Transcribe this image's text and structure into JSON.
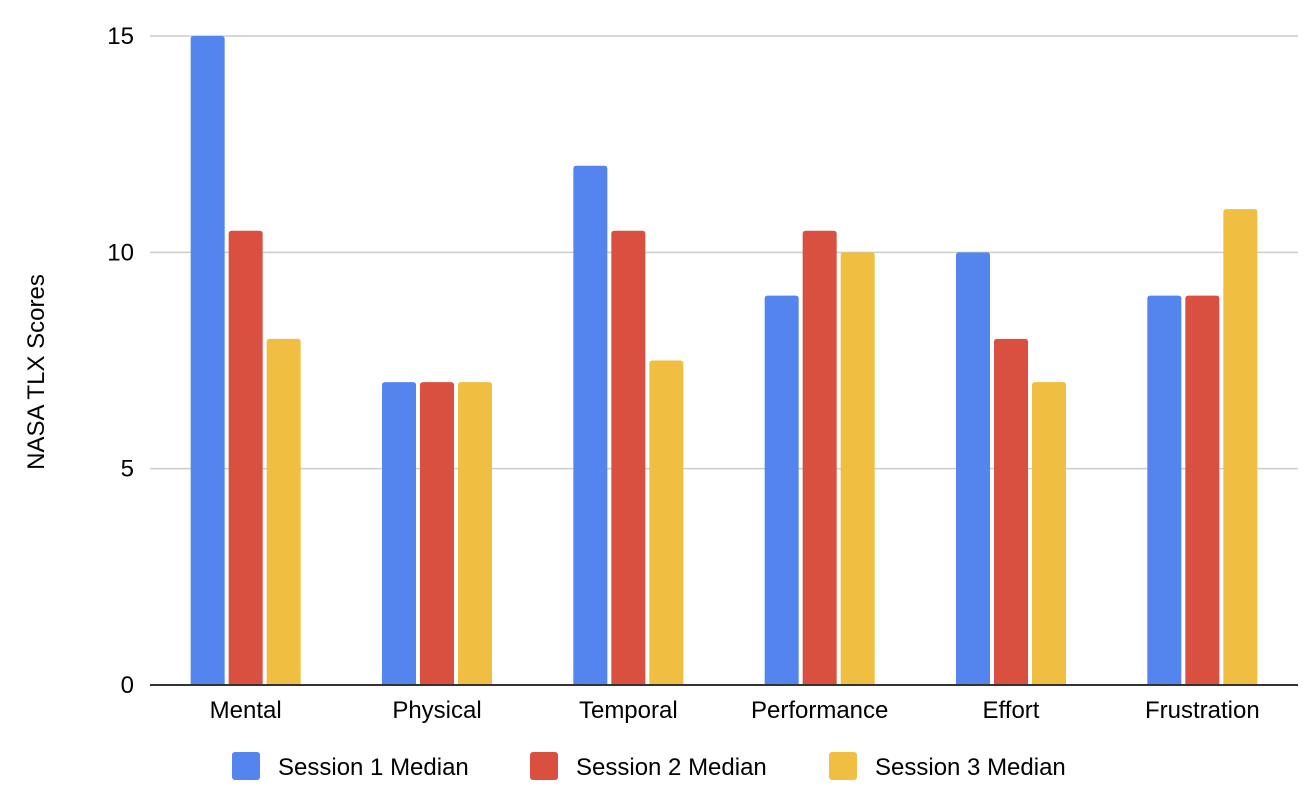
{
  "chart_data": {
    "type": "bar",
    "title": "",
    "xlabel": "",
    "ylabel": "NASA TLX Scores",
    "ylim": [
      0,
      15
    ],
    "yticks": [
      0,
      5,
      10,
      15
    ],
    "grid": true,
    "legend_position": "bottom",
    "categories": [
      "Mental",
      "Physical",
      "Temporal",
      "Performance",
      "Effort",
      "Frustration"
    ],
    "series": [
      {
        "name": "Session 1 Median",
        "color": "#5484ED",
        "values": [
          15,
          7,
          12,
          9,
          10,
          9
        ]
      },
      {
        "name": "Session 2 Median",
        "color": "#D95040",
        "values": [
          10.5,
          7,
          10.5,
          10.5,
          8,
          9
        ]
      },
      {
        "name": "Session 3 Median",
        "color": "#F0BE40",
        "values": [
          8,
          7,
          7.5,
          10,
          7,
          11
        ]
      }
    ]
  }
}
